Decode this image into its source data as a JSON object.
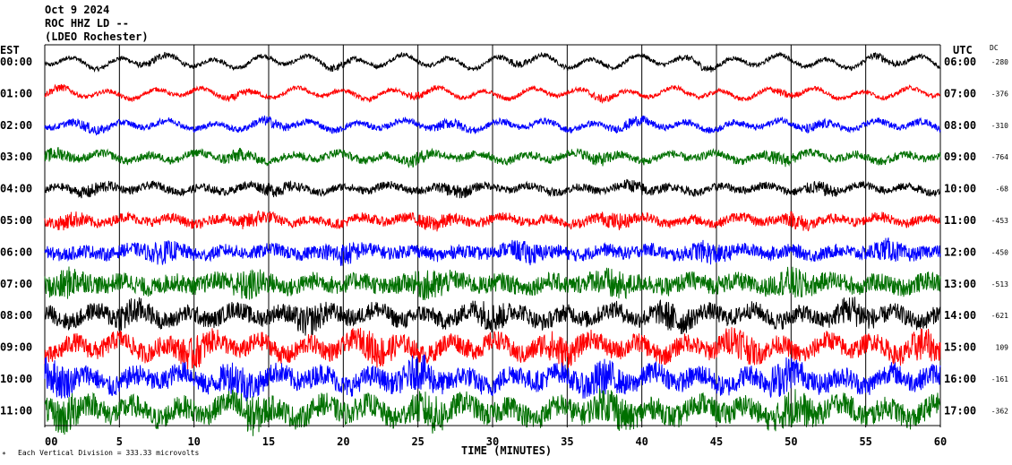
{
  "header": {
    "line1": "Oct 9 2024",
    "line2": "ROC HHZ LD --",
    "line3": "(LDEO Rochester)"
  },
  "labels": {
    "left_zone": "EST",
    "right_zone": "UTC",
    "dc_header": "DC",
    "xlabel": "TIME (MINUTES)",
    "scale_note": "Each Vertical Division = 333.33 microvolts"
  },
  "colors": {
    "trace_cycle": [
      "#000000",
      "#ff0000",
      "#0000ff",
      "#007000"
    ],
    "grid": "#000000",
    "background": "#ffffff"
  },
  "chart_data": {
    "type": "line",
    "title": "ROC HHZ LD --",
    "xlabel": "TIME (MINUTES)",
    "xlim": [
      0,
      60
    ],
    "x_ticks": [
      "00",
      "5",
      "10",
      "15",
      "20",
      "25",
      "30",
      "35",
      "40",
      "45",
      "50",
      "55",
      "60"
    ],
    "vertical_gridlines_every_minutes": 5,
    "rows": [
      {
        "est": "00:00",
        "utc": "06:00",
        "dc": "-280",
        "color": "#000000",
        "amplitude": 0.55,
        "noise": 0.25
      },
      {
        "est": "01:00",
        "utc": "07:00",
        "dc": "-376",
        "color": "#ff0000",
        "amplitude": 0.45,
        "noise": 0.25
      },
      {
        "est": "02:00",
        "utc": "08:00",
        "dc": "-310",
        "color": "#0000ff",
        "amplitude": 0.4,
        "noise": 0.35
      },
      {
        "est": "03:00",
        "utc": "09:00",
        "dc": "-764",
        "color": "#007000",
        "amplitude": 0.35,
        "noise": 0.45
      },
      {
        "est": "04:00",
        "utc": "10:00",
        "dc": "-68",
        "color": "#000000",
        "amplitude": 0.3,
        "noise": 0.45
      },
      {
        "est": "05:00",
        "utc": "11:00",
        "dc": "-453",
        "color": "#ff0000",
        "amplitude": 0.3,
        "noise": 0.55
      },
      {
        "est": "06:00",
        "utc": "12:00",
        "dc": "-450",
        "color": "#0000ff",
        "amplitude": 0.25,
        "noise": 0.75
      },
      {
        "est": "07:00",
        "utc": "13:00",
        "dc": "-513",
        "color": "#007000",
        "amplitude": 0.3,
        "noise": 1.05
      },
      {
        "est": "08:00",
        "utc": "14:00",
        "dc": "-621",
        "color": "#000000",
        "amplitude": 0.5,
        "noise": 1.0
      },
      {
        "est": "09:00",
        "utc": "15:00",
        "dc": "109",
        "color": "#ff0000",
        "amplitude": 0.65,
        "noise": 1.1
      },
      {
        "est": "10:00",
        "utc": "16:00",
        "dc": "-161",
        "color": "#0000ff",
        "amplitude": 0.6,
        "noise": 1.2
      },
      {
        "est": "11:00",
        "utc": "17:00",
        "dc": "-362",
        "color": "#007000",
        "amplitude": 0.65,
        "noise": 1.3
      }
    ]
  }
}
